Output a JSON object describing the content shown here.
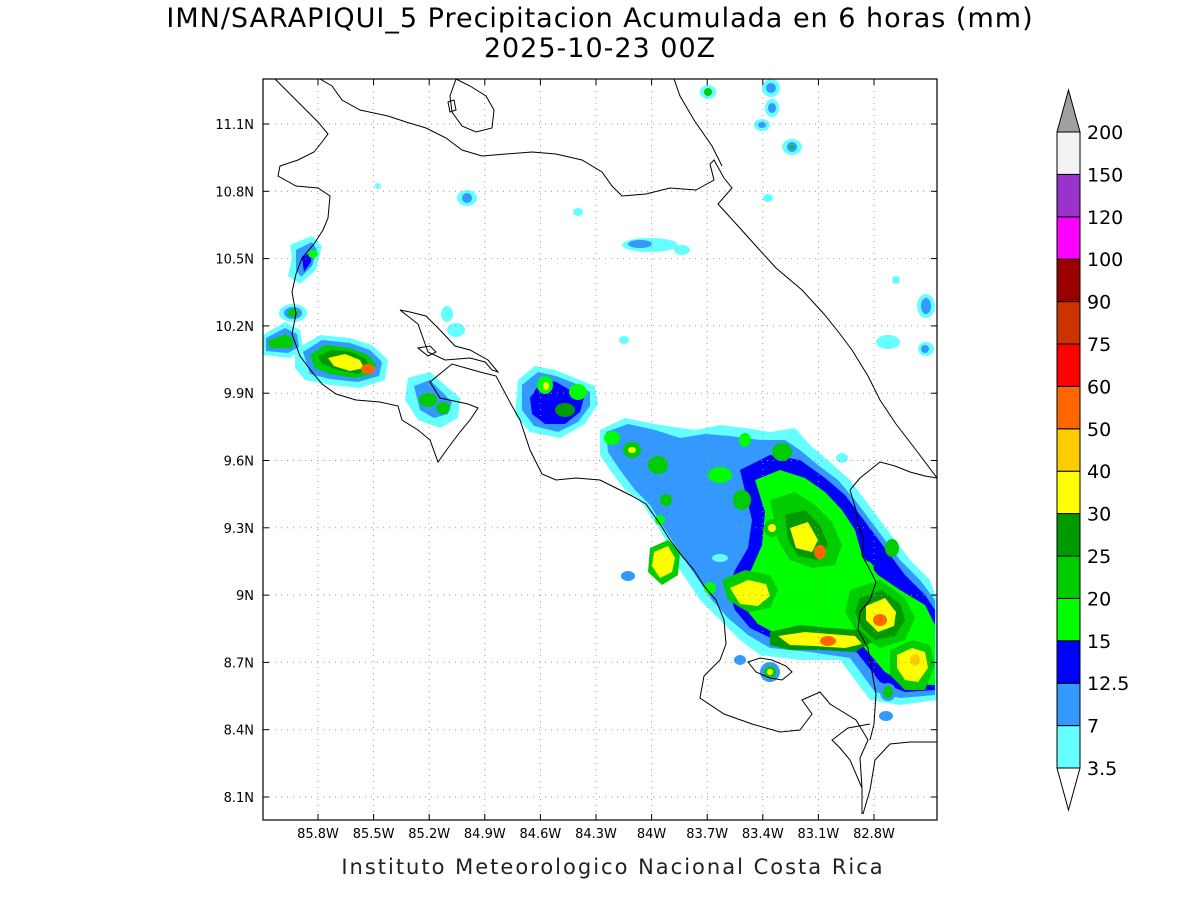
{
  "title": {
    "line1": "IMN/SARAPIQUI_5 Precipitacion Acumulada en 6 horas (mm)",
    "line2": "2025-10-23 00Z"
  },
  "footer": "Instituto Meteorologico Nacional Costa Rica",
  "map": {
    "lon_range": [
      -86.1,
      -82.4
    ],
    "lat_range": [
      8.0,
      11.3
    ],
    "x_ticks": [
      "85.8W",
      "85.5W",
      "85.2W",
      "84.9W",
      "84.6W",
      "84.3W",
      "84W",
      "83.7W",
      "83.4W",
      "83.1W",
      "82.8W"
    ],
    "y_ticks": [
      "11.1N",
      "10.8N",
      "10.5N",
      "10.2N",
      "9.9N",
      "9.6N",
      "9.3N",
      "9N",
      "8.7N",
      "8.4N",
      "8.1N"
    ],
    "grid": "dotted"
  },
  "colorbar": {
    "levels": [
      "3.5",
      "7",
      "12.5",
      "15",
      "20",
      "25",
      "30",
      "40",
      "50",
      "60",
      "75",
      "90",
      "100",
      "120",
      "150",
      "200"
    ],
    "colors": [
      "#66ffff",
      "#3399ff",
      "#0000ff",
      "#00ff00",
      "#00cc00",
      "#009900",
      "#ffff00",
      "#ffcc00",
      "#ff6600",
      "#ff0000",
      "#cc3300",
      "#990000",
      "#ff00ff",
      "#9933cc",
      "#f2f2f2"
    ],
    "top_arrow_color": "#a0a0a0"
  }
}
